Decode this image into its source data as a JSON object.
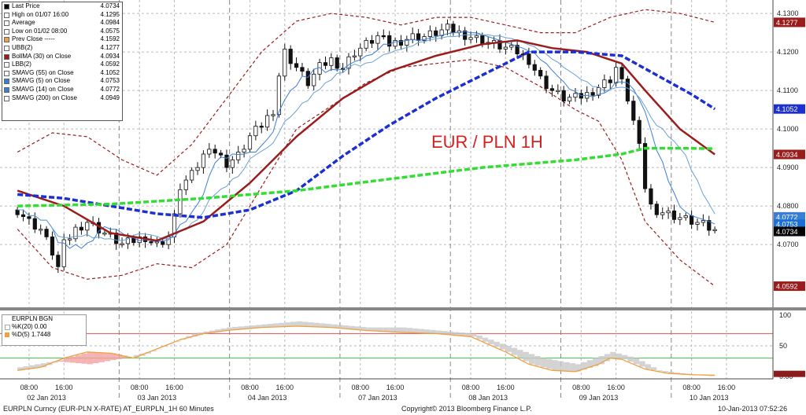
{
  "legend": [
    {
      "label": "Last Price",
      "value": "4.0734",
      "color": "#000000"
    },
    {
      "label": "High on 01/07 16:00",
      "value": "4.1295",
      "color": "#ffffff"
    },
    {
      "label": "Average",
      "value": "4.0984",
      "color": "#ffffff"
    },
    {
      "label": "Low on 01/02 08:00",
      "value": "4.0575",
      "color": "#ffffff"
    },
    {
      "label": "Prev Close -----",
      "value": "4.1592",
      "color": "#e8a34a"
    },
    {
      "label": "UBB(2)",
      "value": "4.1277",
      "color": "#ffffff"
    },
    {
      "label": "BollMA (30) on Close",
      "value": "4.0934",
      "color": "#9b1c1c"
    },
    {
      "label": "LBB(2)",
      "value": "4.0592",
      "color": "#ffffff"
    },
    {
      "label": "SMAVG (55) on Close",
      "value": "4.1052",
      "color": "#ffffff"
    },
    {
      "label": "SMAVG (5) on Close",
      "value": "4.0753",
      "color": "#3b7fd4"
    },
    {
      "label": "SMAVG (14) on Close",
      "value": "4.0772",
      "color": "#3b7fd4"
    },
    {
      "label": "SMAVG (200) on Close",
      "value": "4.0949",
      "color": "#ffffff"
    }
  ],
  "osc_legend": {
    "title": "EURPLN BGN",
    "k_label": "%K(20)",
    "k_value": "0.00",
    "d_label": "%D(5)",
    "d_value": "1.7448"
  },
  "chart_data": {
    "type": "line",
    "title": "EUR / PLN 1H",
    "y_ticks": [
      4.07,
      4.08,
      4.09,
      4.1,
      4.11,
      4.12,
      4.13
    ],
    "ylim": [
      4.0535,
      4.1335
    ],
    "osc_ticks": [
      0,
      50,
      100
    ],
    "x_ticks": [
      {
        "t": 2,
        "label": "08:00"
      },
      {
        "t": 8,
        "label": "16:00"
      },
      {
        "t": 21,
        "label": "08:00"
      },
      {
        "t": 27,
        "label": "16:00"
      },
      {
        "t": 40,
        "label": "08:00"
      },
      {
        "t": 46,
        "label": "16:00"
      },
      {
        "t": 59,
        "label": "08:00"
      },
      {
        "t": 65,
        "label": "16:00"
      },
      {
        "t": 78,
        "label": "08:00"
      },
      {
        "t": 84,
        "label": "16:00"
      },
      {
        "t": 97,
        "label": "08:00"
      },
      {
        "t": 103,
        "label": "16:00"
      },
      {
        "t": 116,
        "label": "08:00"
      },
      {
        "t": 122,
        "label": "16:00"
      }
    ],
    "day_labels": [
      {
        "t": 5,
        "label": "02 Jan 2013"
      },
      {
        "t": 24,
        "label": "03 Jan 2013"
      },
      {
        "t": 43,
        "label": "04 Jan 2013"
      },
      {
        "t": 62,
        "label": "07 Jan 2013"
      },
      {
        "t": 81,
        "label": "08 Jan 2013"
      },
      {
        "t": 100,
        "label": "09 Jan 2013"
      },
      {
        "t": 119,
        "label": "10 Jan 2013"
      }
    ],
    "price_tags": [
      {
        "value": "4.1277",
        "y": 4.1277,
        "color": "#9b1c1c"
      },
      {
        "value": "4.1052",
        "y": 4.1052,
        "color": "#1c2fd0"
      },
      {
        "value": "4.0934",
        "y": 4.0934,
        "color": "#9b1c1c"
      },
      {
        "value": "4.0772",
        "y": 4.0772,
        "color": "#3b7fd4"
      },
      {
        "value": "4.0753",
        "y": 4.0753,
        "color": "#1a6fd8"
      },
      {
        "value": "4.0734",
        "y": 4.0734,
        "color": "#000000"
      },
      {
        "value": "4.0592",
        "y": 4.0592,
        "color": "#9b1c1c"
      }
    ],
    "close": [
      [
        0,
        4.079
      ],
      [
        2,
        4.076
      ],
      [
        4,
        4.074
      ],
      [
        6,
        4.068
      ],
      [
        7,
        4.064
      ],
      [
        8,
        4.07
      ],
      [
        10,
        4.074
      ],
      [
        12,
        4.076
      ],
      [
        14,
        4.074
      ],
      [
        16,
        4.072
      ],
      [
        18,
        4.07
      ],
      [
        20,
        4.071
      ],
      [
        22,
        4.072
      ],
      [
        24,
        4.07
      ],
      [
        26,
        4.072
      ],
      [
        27,
        4.077
      ],
      [
        28,
        4.085
      ],
      [
        30,
        4.088
      ],
      [
        32,
        4.093
      ],
      [
        33,
        4.096
      ],
      [
        34,
        4.094
      ],
      [
        36,
        4.091
      ],
      [
        38,
        4.093
      ],
      [
        40,
        4.098
      ],
      [
        42,
        4.101
      ],
      [
        44,
        4.105
      ],
      [
        45,
        4.114
      ],
      [
        46,
        4.12
      ],
      [
        48,
        4.116
      ],
      [
        50,
        4.112
      ],
      [
        52,
        4.116
      ],
      [
        54,
        4.118
      ],
      [
        56,
        4.116
      ],
      [
        58,
        4.12
      ],
      [
        60,
        4.122
      ],
      [
        62,
        4.124
      ],
      [
        64,
        4.122
      ],
      [
        66,
        4.123
      ],
      [
        68,
        4.124
      ],
      [
        70,
        4.124
      ],
      [
        72,
        4.125
      ],
      [
        74,
        4.126
      ],
      [
        76,
        4.125
      ],
      [
        78,
        4.124
      ],
      [
        80,
        4.123
      ],
      [
        82,
        4.122
      ],
      [
        84,
        4.121
      ],
      [
        86,
        4.12
      ],
      [
        88,
        4.118
      ],
      [
        90,
        4.113
      ],
      [
        92,
        4.11
      ],
      [
        94,
        4.108
      ],
      [
        96,
        4.108
      ],
      [
        98,
        4.109
      ],
      [
        100,
        4.111
      ],
      [
        102,
        4.113
      ],
      [
        103,
        4.116
      ],
      [
        104,
        4.112
      ],
      [
        105,
        4.108
      ],
      [
        106,
        4.102
      ],
      [
        107,
        4.095
      ],
      [
        108,
        4.085
      ],
      [
        109,
        4.08
      ],
      [
        110,
        4.079
      ],
      [
        112,
        4.078
      ],
      [
        114,
        4.077
      ],
      [
        116,
        4.076
      ],
      [
        118,
        4.075
      ],
      [
        120,
        4.0734
      ]
    ],
    "series": [
      {
        "name": "BollMA (30) on Close",
        "color": "#9b1c1c",
        "dash": "",
        "points": [
          [
            0,
            4.084
          ],
          [
            8,
            4.08
          ],
          [
            16,
            4.073
          ],
          [
            24,
            4.071
          ],
          [
            32,
            4.076
          ],
          [
            40,
            4.086
          ],
          [
            48,
            4.098
          ],
          [
            56,
            4.108
          ],
          [
            64,
            4.115
          ],
          [
            72,
            4.119
          ],
          [
            80,
            4.122
          ],
          [
            86,
            4.123
          ],
          [
            92,
            4.121
          ],
          [
            98,
            4.12
          ],
          [
            104,
            4.117
          ],
          [
            108,
            4.11
          ],
          [
            114,
            4.1
          ],
          [
            120,
            4.0934
          ]
        ]
      },
      {
        "name": "SMAVG (55) on Close",
        "color": "#1c2fd0",
        "dash": "7,3",
        "points": [
          [
            0,
            4.083
          ],
          [
            8,
            4.082
          ],
          [
            16,
            4.08
          ],
          [
            24,
            4.078
          ],
          [
            32,
            4.077
          ],
          [
            40,
            4.079
          ],
          [
            48,
            4.084
          ],
          [
            56,
            4.093
          ],
          [
            64,
            4.101
          ],
          [
            72,
            4.108
          ],
          [
            80,
            4.114
          ],
          [
            88,
            4.12
          ],
          [
            96,
            4.12
          ],
          [
            104,
            4.119
          ],
          [
            110,
            4.114
          ],
          [
            116,
            4.109
          ],
          [
            120,
            4.1052
          ]
        ]
      },
      {
        "name": "SMAVG (200) on Close",
        "color": "#33dd33",
        "dash": "7,3",
        "points": [
          [
            0,
            4.08
          ],
          [
            16,
            4.0805
          ],
          [
            32,
            4.082
          ],
          [
            48,
            4.084
          ],
          [
            64,
            4.087
          ],
          [
            80,
            4.09
          ],
          [
            96,
            4.092
          ],
          [
            104,
            4.0935
          ],
          [
            108,
            4.095
          ],
          [
            114,
            4.095
          ],
          [
            120,
            4.0949
          ]
        ]
      },
      {
        "name": "UBB(2)",
        "color": "#9b1c1c",
        "dash": "4,3",
        "points": [
          [
            0,
            4.094
          ],
          [
            6,
            4.099
          ],
          [
            12,
            4.098
          ],
          [
            18,
            4.092
          ],
          [
            24,
            4.088
          ],
          [
            30,
            4.096
          ],
          [
            36,
            4.108
          ],
          [
            42,
            4.12
          ],
          [
            48,
            4.128
          ],
          [
            54,
            4.13
          ],
          [
            60,
            4.129
          ],
          [
            66,
            4.127
          ],
          [
            72,
            4.129
          ],
          [
            78,
            4.129
          ],
          [
            84,
            4.127
          ],
          [
            90,
            4.125
          ],
          [
            96,
            4.125
          ],
          [
            102,
            4.129
          ],
          [
            108,
            4.131
          ],
          [
            114,
            4.13
          ],
          [
            120,
            4.1277
          ]
        ]
      },
      {
        "name": "LBB(2)",
        "color": "#9b1c1c",
        "dash": "4,3",
        "points": [
          [
            0,
            4.074
          ],
          [
            6,
            4.064
          ],
          [
            12,
            4.061
          ],
          [
            18,
            4.062
          ],
          [
            24,
            4.065
          ],
          [
            30,
            4.064
          ],
          [
            36,
            4.07
          ],
          [
            42,
            4.085
          ],
          [
            48,
            4.1
          ],
          [
            54,
            4.106
          ],
          [
            60,
            4.112
          ],
          [
            66,
            4.116
          ],
          [
            72,
            4.117
          ],
          [
            78,
            4.118
          ],
          [
            84,
            4.116
          ],
          [
            90,
            4.111
          ],
          [
            96,
            4.105
          ],
          [
            100,
            4.102
          ],
          [
            104,
            4.092
          ],
          [
            108,
            4.076
          ],
          [
            114,
            4.066
          ],
          [
            120,
            4.0592
          ]
        ]
      }
    ],
    "osc_k": [
      [
        0,
        15
      ],
      [
        6,
        25
      ],
      [
        12,
        20
      ],
      [
        18,
        30
      ],
      [
        24,
        45
      ],
      [
        30,
        70
      ],
      [
        36,
        80
      ],
      [
        42,
        85
      ],
      [
        48,
        90
      ],
      [
        54,
        85
      ],
      [
        60,
        80
      ],
      [
        66,
        80
      ],
      [
        72,
        75
      ],
      [
        78,
        70
      ],
      [
        84,
        50
      ],
      [
        90,
        30
      ],
      [
        96,
        20
      ],
      [
        102,
        40
      ],
      [
        106,
        30
      ],
      [
        110,
        10
      ],
      [
        116,
        3
      ],
      [
        120,
        0
      ]
    ],
    "osc_d": [
      [
        0,
        10
      ],
      [
        4,
        15
      ],
      [
        8,
        30
      ],
      [
        12,
        40
      ],
      [
        16,
        38
      ],
      [
        20,
        30
      ],
      [
        24,
        45
      ],
      [
        28,
        60
      ],
      [
        32,
        70
      ],
      [
        36,
        75
      ],
      [
        42,
        80
      ],
      [
        48,
        82
      ],
      [
        54,
        80
      ],
      [
        60,
        75
      ],
      [
        66,
        72
      ],
      [
        72,
        70
      ],
      [
        78,
        65
      ],
      [
        84,
        40
      ],
      [
        88,
        20
      ],
      [
        92,
        10
      ],
      [
        96,
        8
      ],
      [
        100,
        20
      ],
      [
        102,
        30
      ],
      [
        104,
        28
      ],
      [
        108,
        12
      ],
      [
        112,
        5
      ],
      [
        116,
        3
      ],
      [
        120,
        2
      ]
    ],
    "osc_levels": [
      30,
      70
    ]
  },
  "footer": {
    "left": "EURPLN Curncy (EUR-PLN X-RATE) AT_EURPLN_1H  60 Minutes",
    "center": "Copyright© 2013 Bloomberg Finance L.P.",
    "right": "10-Jan-2013 07:52:26"
  }
}
